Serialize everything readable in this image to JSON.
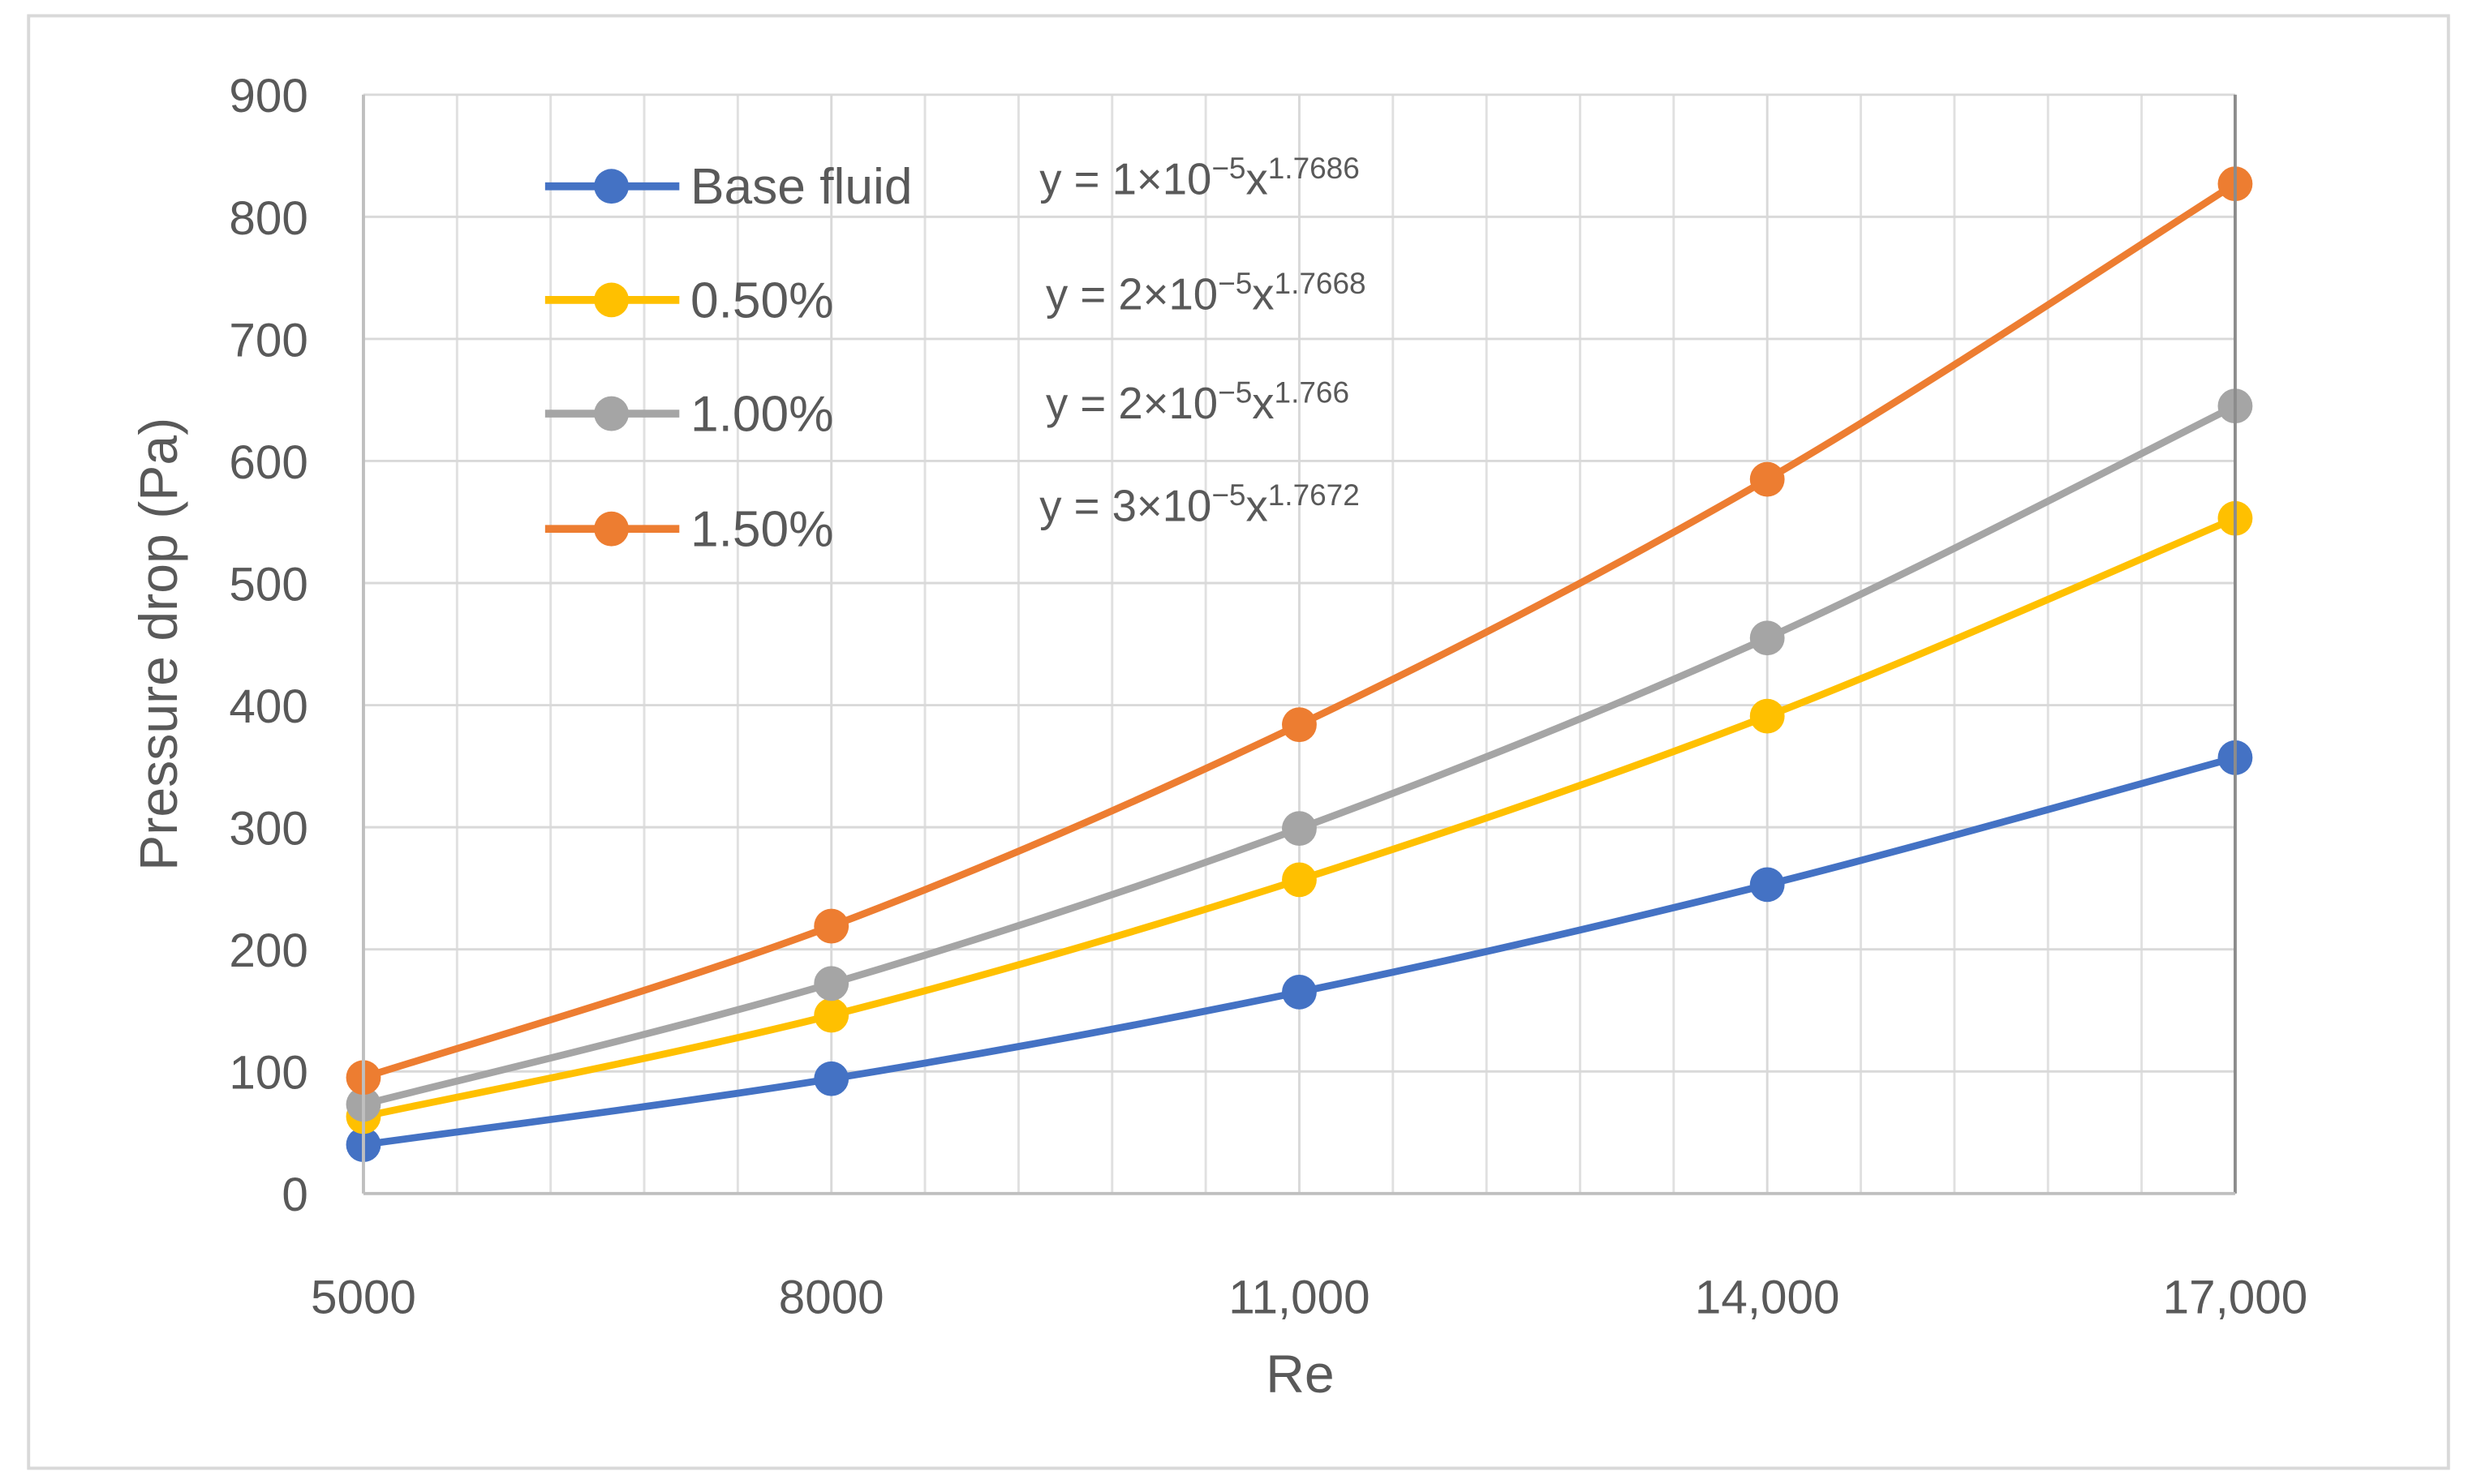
{
  "chart_data": {
    "type": "line",
    "x_label": "Re",
    "y_label": "Pressure drop (Pa)",
    "x": [
      5000,
      8000,
      11000,
      14000,
      17000
    ],
    "xlim": [
      5000,
      17000
    ],
    "xticks": [
      5000,
      8000,
      {
        "value": 11000,
        "label": "11,000"
      },
      {
        "value": 14000,
        "label": "14,000"
      },
      {
        "value": 17000,
        "label": "17,000"
      }
    ],
    "xgrid": [
      5600,
      6200,
      6800,
      7400,
      8600,
      9200,
      9800,
      10400,
      11600,
      12200,
      12800,
      13400,
      14600,
      15200,
      15800,
      16400
    ],
    "ylim": [
      0,
      900
    ],
    "yticks": [
      0,
      100,
      200,
      300,
      400,
      500,
      600,
      700,
      800,
      900
    ],
    "grid": true,
    "legend": "upper left",
    "series": [
      {
        "name": "Base fluid",
        "color": "#4472c4",
        "values": [
          40,
          94,
          165,
          253,
          357
        ],
        "trendline": {
          "lead": "y = 1×10",
          "exp": "−5",
          "var": "x",
          "power": "1.7686"
        }
      },
      {
        "name": "0.50%",
        "color": "#ffc000",
        "values": [
          63,
          146,
          257,
          391,
          553
        ],
        "trendline": {
          "lead": "y = 2×10",
          "exp": "−5",
          "var": "x",
          "power": "1.7668"
        }
      },
      {
        "name": "1.00%",
        "color": "#a5a5a5",
        "values": [
          73,
          172,
          299,
          455,
          645
        ],
        "trendline": {
          "lead": "y = 2×10",
          "exp": "−5",
          "var": "x",
          "power": "1.766"
        }
      },
      {
        "name": "1.50%",
        "color": "#ed7d31",
        "values": [
          95,
          219,
          384,
          585,
          827
        ],
        "trendline": {
          "lead": "y = 3×10",
          "exp": "−5",
          "var": "x",
          "power": "1.7672"
        }
      }
    ]
  }
}
